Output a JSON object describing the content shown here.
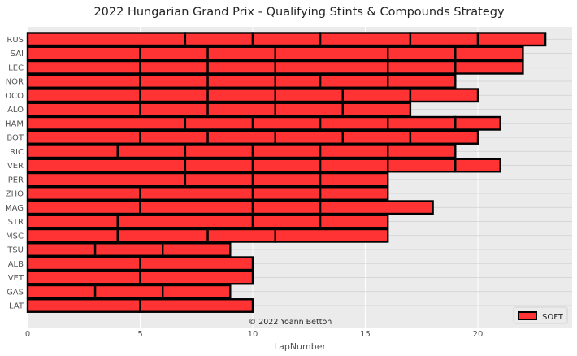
{
  "chart_data": {
    "type": "bar",
    "orientation": "horizontal-stacked",
    "title": "2022 Hungarian Grand Prix - Qualifying Stints & Compounds Strategy",
    "xlabel": "LapNumber",
    "ylabel": "",
    "xlim": [
      0,
      24.2
    ],
    "xticks": [
      0,
      5,
      10,
      15,
      20
    ],
    "grid": true,
    "legend": {
      "placement": "bottom-right",
      "entries": [
        "SOFT"
      ]
    },
    "annotation": "© 2022 Yoann Betton",
    "colors": {
      "SOFT": "#ff3333",
      "edge": "#000000",
      "background": "#ebebeb",
      "grid": "#ffffff"
    },
    "drivers": [
      {
        "name": "RUS",
        "stints": [
          7,
          3,
          3,
          4,
          3,
          3
        ],
        "compound": "SOFT"
      },
      {
        "name": "SAI",
        "stints": [
          5,
          3,
          3,
          5,
          3,
          3
        ],
        "compound": "SOFT"
      },
      {
        "name": "LEC",
        "stints": [
          5,
          3,
          3,
          5,
          3,
          3
        ],
        "compound": "SOFT"
      },
      {
        "name": "NOR",
        "stints": [
          5,
          3,
          3,
          2,
          3,
          3
        ],
        "compound": "SOFT"
      },
      {
        "name": "OCO",
        "stints": [
          5,
          3,
          3,
          3,
          3,
          3
        ],
        "compound": "SOFT"
      },
      {
        "name": "ALO",
        "stints": [
          5,
          3,
          3,
          3,
          3
        ],
        "compound": "SOFT"
      },
      {
        "name": "HAM",
        "stints": [
          7,
          3,
          3,
          3,
          3,
          2
        ],
        "compound": "SOFT"
      },
      {
        "name": "BOT",
        "stints": [
          5,
          3,
          3,
          3,
          3,
          3
        ],
        "compound": "SOFT"
      },
      {
        "name": "RIC",
        "stints": [
          4,
          3,
          3,
          3,
          3,
          3
        ],
        "compound": "SOFT"
      },
      {
        "name": "VER",
        "stints": [
          7,
          3,
          3,
          3,
          3,
          2
        ],
        "compound": "SOFT"
      },
      {
        "name": "PER",
        "stints": [
          7,
          3,
          3,
          3
        ],
        "compound": "SOFT"
      },
      {
        "name": "ZHO",
        "stints": [
          5,
          5,
          3,
          3
        ],
        "compound": "SOFT"
      },
      {
        "name": "MAG",
        "stints": [
          5,
          5,
          3,
          5
        ],
        "compound": "SOFT"
      },
      {
        "name": "STR",
        "stints": [
          4,
          6,
          3,
          3
        ],
        "compound": "SOFT"
      },
      {
        "name": "MSC",
        "stints": [
          4,
          4,
          3,
          5
        ],
        "compound": "SOFT"
      },
      {
        "name": "TSU",
        "stints": [
          3,
          3,
          3
        ],
        "compound": "SOFT"
      },
      {
        "name": "ALB",
        "stints": [
          5,
          5
        ],
        "compound": "SOFT"
      },
      {
        "name": "VET",
        "stints": [
          5,
          5
        ],
        "compound": "SOFT"
      },
      {
        "name": "GAS",
        "stints": [
          3,
          3,
          3
        ],
        "compound": "SOFT"
      },
      {
        "name": "LAT",
        "stints": [
          5,
          5
        ],
        "compound": "SOFT"
      }
    ]
  }
}
